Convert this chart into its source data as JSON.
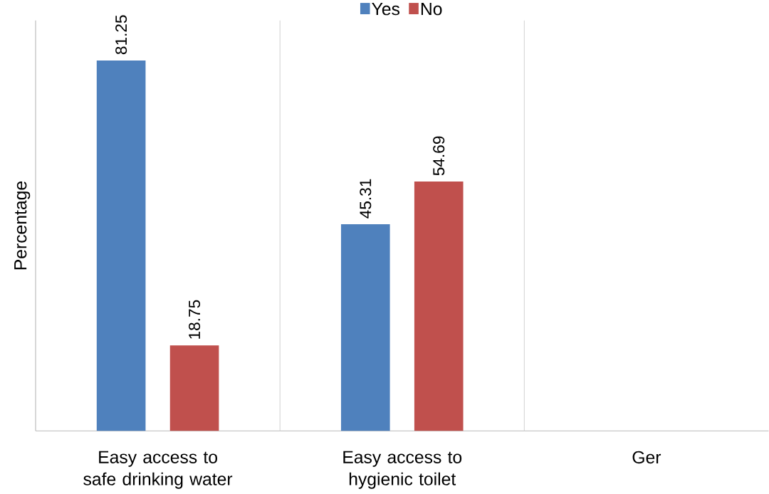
{
  "chart_data": {
    "type": "bar",
    "ylabel": "Percentage",
    "categories": [
      "Easy access to safe drinking water",
      "Easy access to hygienic toilet",
      "Ger"
    ],
    "series": [
      {
        "name": "Yes",
        "color": "#4f81bd",
        "values": [
          81.25,
          45.31,
          null
        ]
      },
      {
        "name": "No",
        "color": "#c0504d",
        "values": [
          18.75,
          54.69,
          null
        ]
      }
    ],
    "ylim": [
      0,
      90
    ],
    "data_labels": true,
    "legend": "top"
  }
}
